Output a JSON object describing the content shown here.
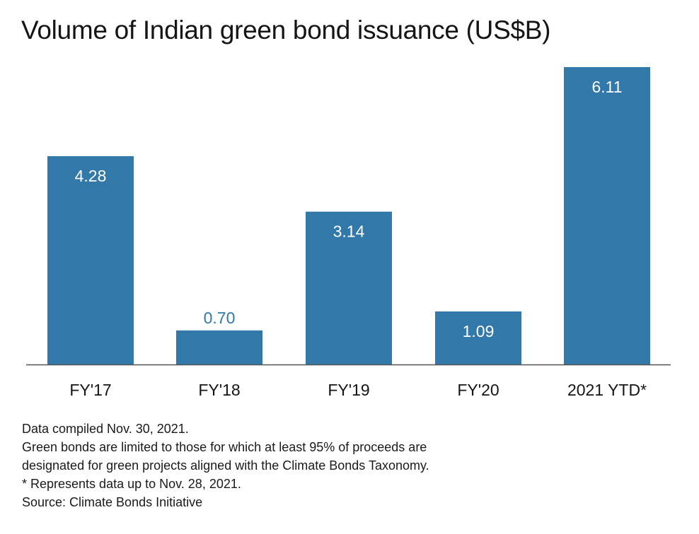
{
  "chart_data": {
    "type": "bar",
    "title": "Volume of Indian green bond issuance (US$B)",
    "categories": [
      "FY'17",
      "FY'18",
      "FY'19",
      "FY'20",
      "2021 YTD*"
    ],
    "values": [
      4.28,
      0.7,
      3.14,
      1.09,
      6.11
    ],
    "value_labels": [
      "4.28",
      "0.70",
      "3.14",
      "1.09",
      "6.11"
    ],
    "xlabel": "",
    "ylabel": "",
    "ylim": [
      0,
      6.11
    ],
    "grid": false,
    "legend": "none",
    "bar_color": "#3278a8",
    "label_color_inside": "#ffffff",
    "label_color_outside": "#3278a8"
  },
  "notes": {
    "compiled": "Data compiled Nov. 30, 2021.",
    "limit_line1": "Green bonds are limited to those for which at least 95% of proceeds are",
    "limit_line2": "designated for green projects aligned with the Climate Bonds Taxonomy.",
    "asterisk": "* Represents data up to Nov. 28, 2021.",
    "source": "Source: Climate Bonds Initiative"
  }
}
